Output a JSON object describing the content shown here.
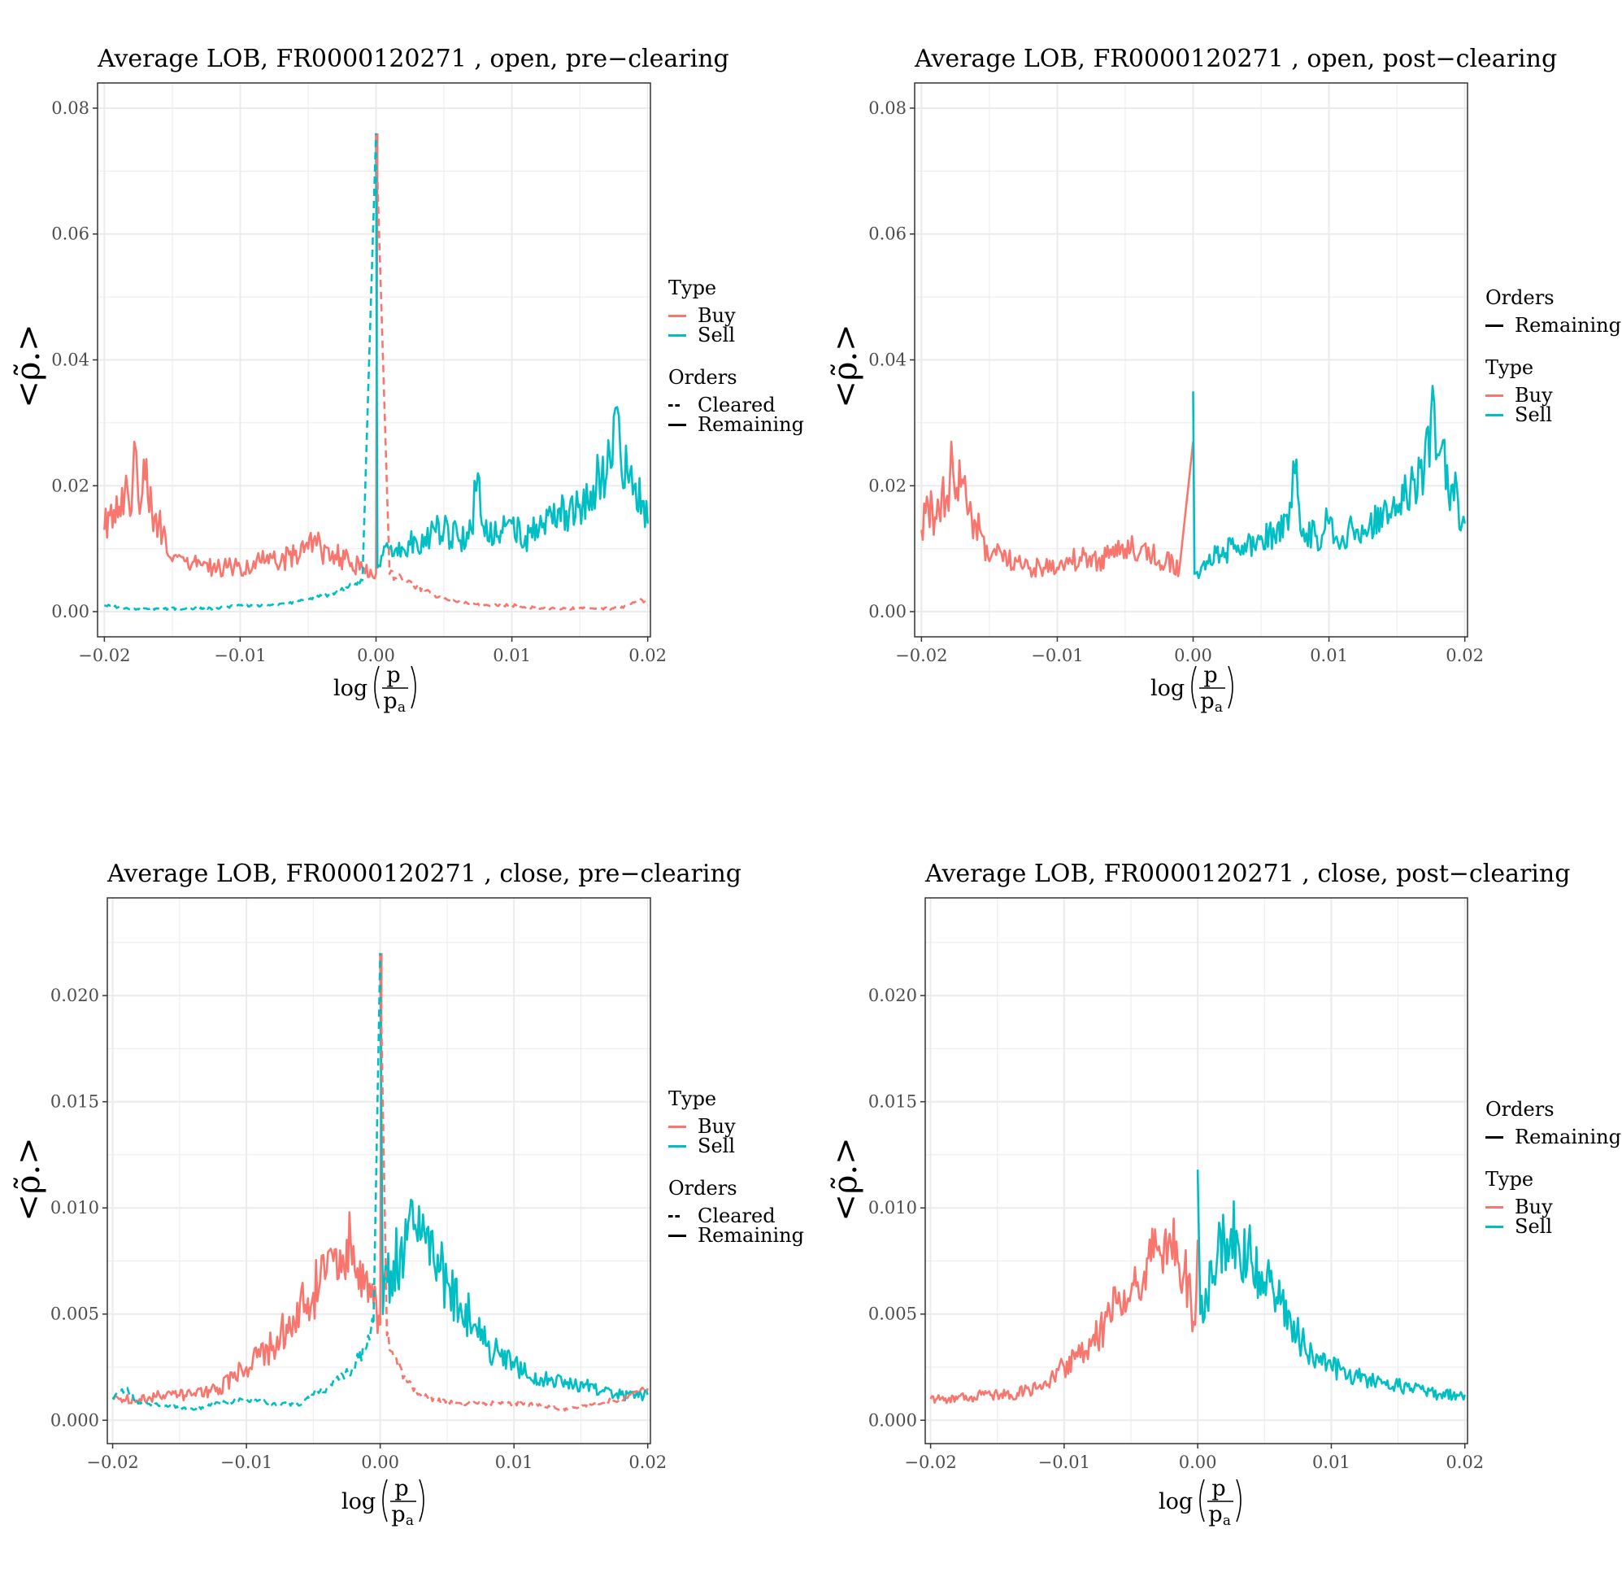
{
  "legend_labels": {
    "type_title": "Type",
    "orders_title": "Orders",
    "buy": "Buy",
    "sell": "Sell",
    "cleared": "Cleared",
    "remaining": "Remaining"
  },
  "axis_text": {
    "ylabel": "<ρ̃.>",
    "xlabel_log": "log",
    "xlabel_num": "p",
    "xlabel_den": "p",
    "xlabel_den_sub": "a"
  },
  "colors": {
    "buy": "#F8766D",
    "sell": "#00BFC4",
    "grid": "#EBEBEB",
    "frame": "#333333"
  },
  "chart_data": [
    {
      "type": "line",
      "title": "Average LOB, FR0000120271 , open, pre−clearing",
      "xlim": [
        -0.0205,
        0.0202
      ],
      "ylim": [
        -0.004,
        0.084
      ],
      "x_ticks": [
        -0.02,
        -0.01,
        0.0,
        0.01,
        0.02
      ],
      "x_tick_labels": [
        "−0.02",
        "−0.01",
        "0.00",
        "0.01",
        "0.02"
      ],
      "y_ticks": [
        0.0,
        0.02,
        0.04,
        0.06,
        0.08
      ],
      "y_tick_labels": [
        "0.00",
        "0.02",
        "0.04",
        "0.06",
        "0.08"
      ],
      "legend_order": [
        "type",
        "orders"
      ],
      "orders_shown": [
        "cleared",
        "remaining"
      ],
      "series": [
        {
          "name": "Buy",
          "orders": "Remaining",
          "type": "Buy",
          "dashed": false,
          "x": [
            -0.02,
            -0.0195,
            -0.019,
            -0.0185,
            -0.018,
            -0.0178,
            -0.0175,
            -0.017,
            -0.0165,
            -0.016,
            -0.0155,
            -0.015,
            -0.0145,
            -0.014,
            -0.013,
            -0.012,
            -0.011,
            -0.01,
            -0.009,
            -0.008,
            -0.007,
            -0.006,
            -0.005,
            -0.0045,
            -0.004,
            -0.003,
            -0.002,
            -0.001,
            0.0,
            0.0001
          ],
          "y": [
            0.013,
            0.017,
            0.015,
            0.019,
            0.016,
            0.027,
            0.018,
            0.021,
            0.016,
            0.014,
            0.012,
            0.008,
            0.009,
            0.008,
            0.008,
            0.007,
            0.007,
            0.007,
            0.008,
            0.009,
            0.008,
            0.009,
            0.01,
            0.012,
            0.009,
            0.009,
            0.008,
            0.007,
            0.006,
            0.076
          ]
        },
        {
          "name": "Sell",
          "orders": "Remaining",
          "type": "Sell",
          "dashed": false,
          "x": [
            0.0,
            0.0001,
            0.0005,
            0.001,
            0.002,
            0.003,
            0.004,
            0.005,
            0.006,
            0.007,
            0.0075,
            0.008,
            0.009,
            0.01,
            0.011,
            0.012,
            0.013,
            0.014,
            0.015,
            0.016,
            0.017,
            0.0175,
            0.018,
            0.019,
            0.02
          ],
          "y": [
            0.076,
            0.007,
            0.009,
            0.01,
            0.01,
            0.011,
            0.012,
            0.013,
            0.012,
            0.013,
            0.022,
            0.012,
            0.012,
            0.014,
            0.012,
            0.013,
            0.014,
            0.016,
            0.017,
            0.02,
            0.022,
            0.031,
            0.025,
            0.02,
            0.014
          ]
        },
        {
          "name": "Buy",
          "orders": "Cleared",
          "type": "Buy",
          "dashed": true,
          "x": [
            0.0,
            0.001,
            0.002,
            0.003,
            0.004,
            0.005,
            0.006,
            0.008,
            0.01,
            0.012,
            0.014,
            0.016,
            0.018,
            0.0195,
            0.02
          ],
          "y": [
            0.076,
            0.006,
            0.005,
            0.004,
            0.003,
            0.002,
            0.0015,
            0.001,
            0.001,
            0.0005,
            0.0005,
            0.0005,
            0.0005,
            0.002,
            0.001
          ]
        },
        {
          "name": "Sell",
          "orders": "Cleared",
          "type": "Sell",
          "dashed": true,
          "x": [
            -0.02,
            -0.018,
            -0.016,
            -0.014,
            -0.012,
            -0.01,
            -0.008,
            -0.006,
            -0.005,
            -0.004,
            -0.003,
            -0.002,
            -0.001,
            0.0
          ],
          "y": [
            0.001,
            0.0005,
            0.0005,
            0.0005,
            0.0005,
            0.001,
            0.001,
            0.0015,
            0.002,
            0.0025,
            0.003,
            0.004,
            0.005,
            0.076
          ]
        }
      ]
    },
    {
      "type": "line",
      "title": "Average LOB, FR0000120271 , open, post−clearing",
      "xlim": [
        -0.0205,
        0.0202
      ],
      "ylim": [
        -0.004,
        0.084
      ],
      "x_ticks": [
        -0.02,
        -0.01,
        0.0,
        0.01,
        0.02
      ],
      "x_tick_labels": [
        "−0.02",
        "−0.01",
        "0.00",
        "0.01",
        "0.02"
      ],
      "y_ticks": [
        0.0,
        0.02,
        0.04,
        0.06,
        0.08
      ],
      "y_tick_labels": [
        "0.00",
        "0.02",
        "0.04",
        "0.06",
        "0.08"
      ],
      "legend_order": [
        "orders",
        "type"
      ],
      "orders_shown": [
        "remaining"
      ],
      "series": [
        {
          "name": "Buy",
          "orders": "Remaining",
          "type": "Buy",
          "dashed": false,
          "x": [
            -0.02,
            -0.0195,
            -0.019,
            -0.0185,
            -0.018,
            -0.0178,
            -0.0175,
            -0.017,
            -0.0165,
            -0.016,
            -0.0155,
            -0.015,
            -0.0145,
            -0.014,
            -0.013,
            -0.012,
            -0.011,
            -0.01,
            -0.009,
            -0.008,
            -0.007,
            -0.006,
            -0.005,
            -0.0045,
            -0.004,
            -0.003,
            -0.002,
            -0.001,
            0.0
          ],
          "y": [
            0.013,
            0.017,
            0.015,
            0.019,
            0.016,
            0.027,
            0.018,
            0.021,
            0.016,
            0.014,
            0.012,
            0.008,
            0.009,
            0.008,
            0.008,
            0.007,
            0.007,
            0.007,
            0.008,
            0.009,
            0.008,
            0.009,
            0.01,
            0.012,
            0.009,
            0.009,
            0.008,
            0.007,
            0.027
          ]
        },
        {
          "name": "Sell",
          "orders": "Remaining",
          "type": "Sell",
          "dashed": false,
          "x": [
            0.0,
            0.0001,
            0.0005,
            0.001,
            0.002,
            0.003,
            0.004,
            0.005,
            0.006,
            0.007,
            0.0075,
            0.008,
            0.009,
            0.01,
            0.011,
            0.012,
            0.013,
            0.014,
            0.015,
            0.016,
            0.017,
            0.0175,
            0.018,
            0.019,
            0.02
          ],
          "y": [
            0.035,
            0.006,
            0.006,
            0.008,
            0.009,
            0.01,
            0.011,
            0.012,
            0.012,
            0.013,
            0.022,
            0.012,
            0.012,
            0.014,
            0.012,
            0.013,
            0.014,
            0.016,
            0.017,
            0.02,
            0.022,
            0.031,
            0.025,
            0.02,
            0.014
          ]
        }
      ]
    },
    {
      "type": "line",
      "title": "Average LOB, FR0000120271 , close, pre−clearing",
      "xlim": [
        -0.0204,
        0.0202
      ],
      "ylim": [
        -0.0011,
        0.0246
      ],
      "x_ticks": [
        -0.02,
        -0.01,
        0.0,
        0.01,
        0.02
      ],
      "x_tick_labels": [
        "−0.02",
        "−0.01",
        "0.00",
        "0.01",
        "0.02"
      ],
      "y_ticks": [
        0.0,
        0.005,
        0.01,
        0.015,
        0.02
      ],
      "y_tick_labels": [
        "0.000",
        "0.005",
        "0.010",
        "0.015",
        "0.020"
      ],
      "legend_order": [
        "type",
        "orders"
      ],
      "orders_shown": [
        "cleared",
        "remaining"
      ],
      "series": [
        {
          "name": "Buy",
          "orders": "Remaining",
          "type": "Buy",
          "dashed": false,
          "x": [
            -0.02,
            -0.018,
            -0.016,
            -0.014,
            -0.012,
            -0.011,
            -0.01,
            -0.009,
            -0.008,
            -0.007,
            -0.006,
            -0.005,
            -0.0045,
            -0.004,
            -0.0035,
            -0.003,
            -0.0025,
            -0.002,
            -0.0015,
            -0.001,
            -0.0005,
            0.0,
            0.0001
          ],
          "y": [
            0.001,
            0.001,
            0.0012,
            0.0012,
            0.0015,
            0.002,
            0.0025,
            0.003,
            0.0035,
            0.0045,
            0.0055,
            0.006,
            0.0065,
            0.007,
            0.0075,
            0.008,
            0.0085,
            0.0082,
            0.0075,
            0.007,
            0.0055,
            0.0045,
            0.022
          ]
        },
        {
          "name": "Sell",
          "orders": "Remaining",
          "type": "Sell",
          "dashed": false,
          "x": [
            0.0,
            0.0002,
            0.0005,
            0.001,
            0.0015,
            0.002,
            0.0025,
            0.003,
            0.004,
            0.005,
            0.006,
            0.007,
            0.008,
            0.009,
            0.01,
            0.012,
            0.014,
            0.016,
            0.018,
            0.02
          ],
          "y": [
            0.022,
            0.005,
            0.0065,
            0.0075,
            0.008,
            0.0085,
            0.009,
            0.0085,
            0.0075,
            0.0065,
            0.0055,
            0.0045,
            0.0035,
            0.003,
            0.0025,
            0.002,
            0.0018,
            0.0015,
            0.0012,
            0.0012
          ]
        },
        {
          "name": "Buy",
          "orders": "Cleared",
          "type": "Buy",
          "dashed": true,
          "x": [
            0.0,
            0.0005,
            0.001,
            0.002,
            0.003,
            0.004,
            0.006,
            0.008,
            0.01,
            0.012,
            0.014,
            0.016,
            0.018,
            0.02
          ],
          "y": [
            0.022,
            0.004,
            0.003,
            0.0018,
            0.0012,
            0.001,
            0.0008,
            0.0008,
            0.0008,
            0.0007,
            0.0005,
            0.0008,
            0.001,
            0.0015
          ]
        },
        {
          "name": "Sell",
          "orders": "Cleared",
          "type": "Sell",
          "dashed": true,
          "x": [
            -0.02,
            -0.019,
            -0.018,
            -0.016,
            -0.014,
            -0.012,
            -0.01,
            -0.008,
            -0.006,
            -0.005,
            -0.004,
            -0.003,
            -0.002,
            -0.001,
            -0.0005,
            0.0
          ],
          "y": [
            0.001,
            0.0015,
            0.0008,
            0.0007,
            0.0005,
            0.0008,
            0.001,
            0.0008,
            0.0007,
            0.0012,
            0.0015,
            0.002,
            0.0025,
            0.0035,
            0.0045,
            0.022
          ]
        }
      ]
    },
    {
      "type": "line",
      "title": "Average LOB, FR0000120271 , close, post−clearing",
      "xlim": [
        -0.0204,
        0.0202
      ],
      "ylim": [
        -0.0011,
        0.0246
      ],
      "x_ticks": [
        -0.02,
        -0.01,
        0.0,
        0.01,
        0.02
      ],
      "x_tick_labels": [
        "−0.02",
        "−0.01",
        "0.00",
        "0.01",
        "0.02"
      ],
      "y_ticks": [
        0.0,
        0.005,
        0.01,
        0.015,
        0.02
      ],
      "y_tick_labels": [
        "0.000",
        "0.005",
        "0.010",
        "0.015",
        "0.020"
      ],
      "legend_order": [
        "orders",
        "type"
      ],
      "orders_shown": [
        "remaining"
      ],
      "series": [
        {
          "name": "Buy",
          "orders": "Remaining",
          "type": "Buy",
          "dashed": false,
          "x": [
            -0.02,
            -0.018,
            -0.016,
            -0.014,
            -0.012,
            -0.011,
            -0.01,
            -0.009,
            -0.008,
            -0.007,
            -0.006,
            -0.005,
            -0.0045,
            -0.004,
            -0.0035,
            -0.003,
            -0.0025,
            -0.002,
            -0.0015,
            -0.001,
            -0.0005,
            -0.0002,
            0.0
          ],
          "y": [
            0.001,
            0.001,
            0.0012,
            0.0012,
            0.0015,
            0.002,
            0.0025,
            0.003,
            0.0035,
            0.0045,
            0.0055,
            0.006,
            0.0065,
            0.007,
            0.0075,
            0.008,
            0.0085,
            0.0082,
            0.0075,
            0.007,
            0.0055,
            0.0045,
            0.0085
          ]
        },
        {
          "name": "Sell",
          "orders": "Remaining",
          "type": "Sell",
          "dashed": false,
          "x": [
            0.0,
            0.0002,
            0.0005,
            0.001,
            0.0015,
            0.002,
            0.0025,
            0.003,
            0.004,
            0.005,
            0.006,
            0.007,
            0.008,
            0.009,
            0.01,
            0.012,
            0.014,
            0.016,
            0.018,
            0.02
          ],
          "y": [
            0.0118,
            0.005,
            0.0048,
            0.0075,
            0.008,
            0.0085,
            0.009,
            0.0085,
            0.0075,
            0.0065,
            0.0055,
            0.0045,
            0.0035,
            0.003,
            0.0025,
            0.002,
            0.0018,
            0.0015,
            0.0012,
            0.0012
          ]
        }
      ]
    }
  ]
}
